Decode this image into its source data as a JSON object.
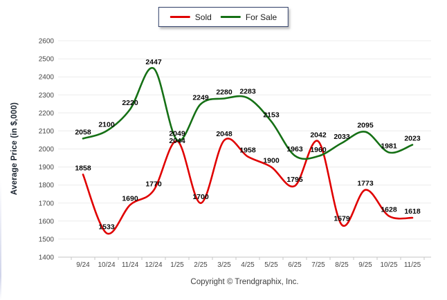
{
  "legend": {
    "items": [
      {
        "label": "Sold",
        "color": "#e00000"
      },
      {
        "label": "For Sale",
        "color": "#157015"
      }
    ]
  },
  "footer": {
    "text": "Copyright © Trendgraphix, Inc."
  },
  "chart_data": {
    "type": "line",
    "title": "",
    "xlabel": "",
    "ylabel": "Average Price (in $,000)",
    "categories": [
      "9/24",
      "10/24",
      "11/24",
      "12/24",
      "1/25",
      "2/25",
      "3/25",
      "4/25",
      "5/25",
      "6/25",
      "7/25",
      "8/25",
      "9/25",
      "10/25",
      "11/25"
    ],
    "series": [
      {
        "name": "Sold",
        "color": "#e00000",
        "values": [
          1858,
          1533,
          1690,
          1770,
          2044,
          1700,
          2048,
          1958,
          1900,
          1795,
          2042,
          1579,
          1773,
          1628,
          1618
        ]
      },
      {
        "name": "For Sale",
        "color": "#157015",
        "values": [
          2058,
          2100,
          2220,
          2447,
          2049,
          2249,
          2280,
          2283,
          2153,
          1963,
          1960,
          2033,
          2095,
          1981,
          2023
        ]
      }
    ],
    "ylim": [
      1400,
      2600
    ],
    "ytick_step": 100,
    "grid": true,
    "line_style": "smooth",
    "data_labels": true,
    "legend_position": "top-center"
  }
}
